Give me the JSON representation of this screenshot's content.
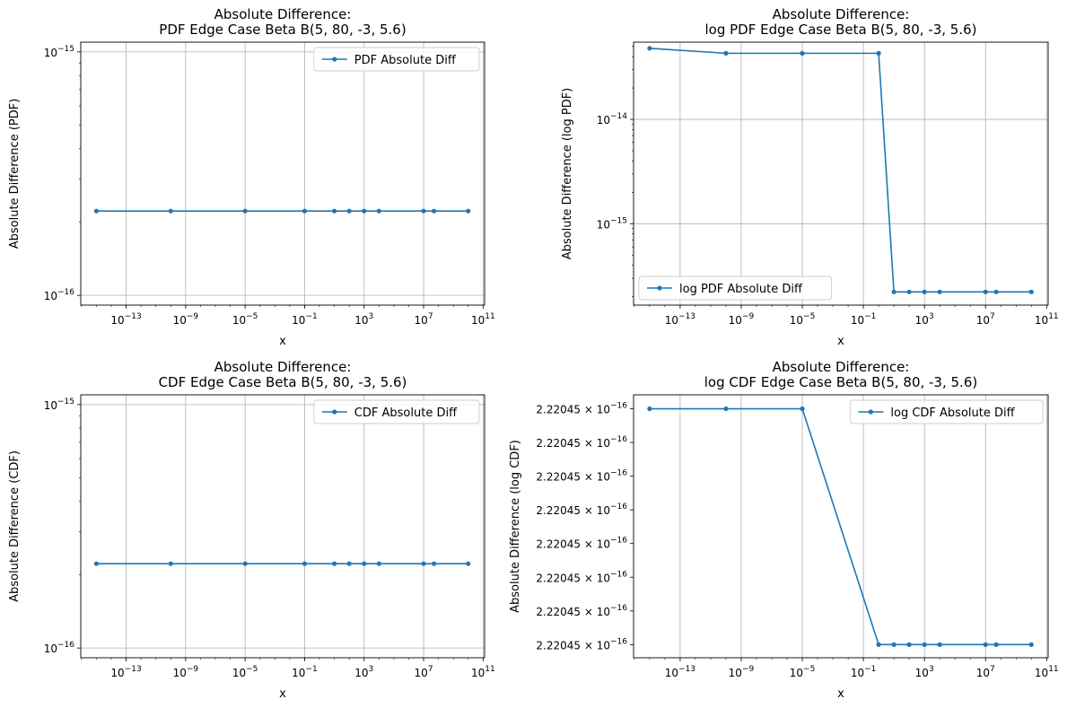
{
  "chart_data": [
    {
      "type": "line",
      "title": [
        "Absolute Difference:",
        "PDF Edge Case Beta B(5, 80, -3, 5.6)"
      ],
      "xlabel": "x",
      "ylabel": "Absolute Difference (PDF)",
      "xscale": "log",
      "yscale": "log",
      "xticks": [
        "10^{-13}",
        "10^{-9}",
        "10^{-5}",
        "10^{-1}",
        "10^{3}",
        "10^{7}",
        "10^{11}"
      ],
      "yticks": [
        "10^{-16}",
        "10^{-15}"
      ],
      "grid": true,
      "legend": "top-right",
      "series": [
        {
          "name": "PDF Absolute Diff",
          "color": "#1f77b4",
          "x": [
            "1e-15",
            "1e-10",
            "1e-5",
            "0.1",
            "10",
            "100",
            "1000",
            "10000",
            "10000000",
            "50000000",
            "10000000000"
          ],
          "y": [
            "2.22e-16",
            "2.22e-16",
            "2.22e-16",
            "2.22e-16",
            "2.22e-16",
            "2.22e-16",
            "2.22e-16",
            "2.22e-16",
            "2.22e-16",
            "2.22e-16",
            "2.22e-16"
          ]
        }
      ]
    },
    {
      "type": "line",
      "title": [
        "Absolute Difference:",
        "log PDF Edge Case Beta B(5, 80, -3, 5.6)"
      ],
      "xlabel": "x",
      "ylabel": "Absolute Difference (log PDF)",
      "xscale": "log",
      "yscale": "log",
      "xticks": [
        "10^{-13}",
        "10^{-9}",
        "10^{-5}",
        "10^{-1}",
        "10^{3}",
        "10^{7}",
        "10^{11}"
      ],
      "yticks": [
        "10^{-15}",
        "10^{-14}"
      ],
      "grid": true,
      "legend": "bottom-left",
      "series": [
        {
          "name": "log PDF Absolute Diff",
          "color": "#1f77b4",
          "x": [
            "1e-15",
            "1e-10",
            "1e-5",
            "1",
            "10",
            "100",
            "1000",
            "10000",
            "10000000",
            "50000000",
            "10000000000"
          ],
          "y": [
            "4.8e-14",
            "4.3e-14",
            "4.3e-14",
            "4.3e-14",
            "2.22e-16",
            "2.22e-16",
            "2.22e-16",
            "2.22e-16",
            "2.22e-16",
            "2.22e-16",
            "2.22e-16"
          ]
        }
      ]
    },
    {
      "type": "line",
      "title": [
        "Absolute Difference:",
        "CDF Edge Case Beta B(5, 80, -3, 5.6)"
      ],
      "xlabel": "x",
      "ylabel": "Absolute Difference (CDF)",
      "xscale": "log",
      "yscale": "log",
      "xticks": [
        "10^{-13}",
        "10^{-9}",
        "10^{-5}",
        "10^{-1}",
        "10^{3}",
        "10^{7}",
        "10^{11}"
      ],
      "yticks": [
        "10^{-16}",
        "10^{-15}"
      ],
      "grid": true,
      "legend": "top-right",
      "series": [
        {
          "name": "CDF Absolute Diff",
          "color": "#1f77b4",
          "x": [
            "1e-15",
            "1e-10",
            "1e-5",
            "0.1",
            "10",
            "100",
            "1000",
            "10000",
            "10000000",
            "50000000",
            "10000000000"
          ],
          "y": [
            "2.22e-16",
            "2.22e-16",
            "2.22e-16",
            "2.22e-16",
            "2.22e-16",
            "2.22e-16",
            "2.22e-16",
            "2.22e-16",
            "2.22e-16",
            "2.22e-16",
            "2.22e-16"
          ]
        }
      ]
    },
    {
      "type": "line",
      "title": [
        "Absolute Difference:",
        "log CDF Edge Case Beta B(5, 80, -3, 5.6)"
      ],
      "xlabel": "x",
      "ylabel": "Absolute Difference (log CDF)",
      "xscale": "log",
      "yscale": "log",
      "xticks": [
        "10^{-13}",
        "10^{-9}",
        "10^{-5}",
        "10^{-1}",
        "10^{3}",
        "10^{7}",
        "10^{11}"
      ],
      "yticks": [
        "2.22045 × 10^{-16}",
        "2.22045 × 10^{-16}",
        "2.22045 × 10^{-16}",
        "2.22045 × 10^{-16}",
        "2.22045 × 10^{-16}",
        "2.22045 × 10^{-16}",
        "2.22045 × 10^{-16}",
        "2.22045 × 10^{-16}"
      ],
      "grid": true,
      "legend": "top-right",
      "series": [
        {
          "name": "log CDF Absolute Diff",
          "color": "#1f77b4",
          "x": [
            "1e-15",
            "1e-10",
            "1e-5",
            "1",
            "10",
            "100",
            "1000",
            "10000",
            "10000000",
            "50000000",
            "10000000000"
          ],
          "y": [
            "2.2204460492503131e-16",
            "2.2204460492503131e-16",
            "2.2204460492503131e-16",
            "2.2204460492503125e-16",
            "2.2204460492503125e-16",
            "2.2204460492503125e-16",
            "2.2204460492503125e-16",
            "2.2204460492503125e-16",
            "2.2204460492503125e-16",
            "2.2204460492503125e-16",
            "2.2204460492503125e-16"
          ]
        }
      ]
    }
  ]
}
